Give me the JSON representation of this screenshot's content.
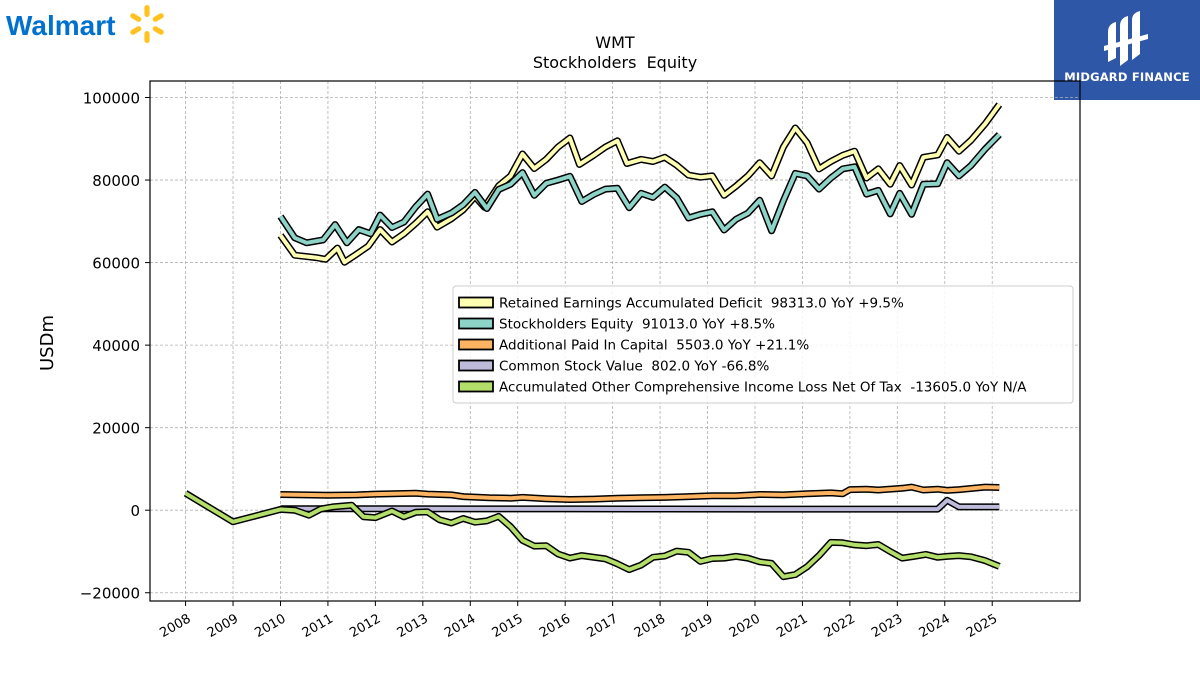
{
  "brand": {
    "left_logo_text": "Walmart",
    "left_logo_icon": "walmart-spark-icon",
    "left_logo_color": "#0071ce",
    "spark_color": "#ffc220",
    "right_logo_text": "MIDGARD FINANCE",
    "right_logo_icon": "midgard-logo-icon",
    "right_logo_bg": "#2f57a8"
  },
  "chart_data": {
    "type": "line",
    "title": "WMT",
    "subtitle": "Stockholders  Equity",
    "ylabel": "USDm",
    "xlabel": "",
    "xlim": [
      2007.25,
      2026.85
    ],
    "ylim": [
      -22000,
      104000
    ],
    "yticks": [
      -20000,
      0,
      20000,
      40000,
      60000,
      80000,
      100000
    ],
    "ytick_labels": [
      "−20000",
      "0",
      "20000",
      "40000",
      "60000",
      "80000",
      "100000"
    ],
    "xticks": [
      2008,
      2009,
      2010,
      2011,
      2012,
      2013,
      2014,
      2015,
      2016,
      2017,
      2018,
      2019,
      2020,
      2021,
      2022,
      2023,
      2024,
      2025
    ],
    "grid": true,
    "legend_position": "center-right",
    "series": [
      {
        "name": "Retained Earnings Accumulated Deficit",
        "legend": "Retained Earnings Accumulated Deficit  98313.0 YoY +9.5%",
        "color": "#ffffb3",
        "points": [
          [
            2010.0,
            66600
          ],
          [
            2010.3,
            61800
          ],
          [
            2010.75,
            61200
          ],
          [
            2010.95,
            60800
          ],
          [
            2011.2,
            63500
          ],
          [
            2011.35,
            60100
          ],
          [
            2011.6,
            62000
          ],
          [
            2011.85,
            64000
          ],
          [
            2012.1,
            68000
          ],
          [
            2012.35,
            65000
          ],
          [
            2012.6,
            67000
          ],
          [
            2012.85,
            69500
          ],
          [
            2013.1,
            72300
          ],
          [
            2013.3,
            68600
          ],
          [
            2013.6,
            70600
          ],
          [
            2013.85,
            72800
          ],
          [
            2014.1,
            76000
          ],
          [
            2014.3,
            73400
          ],
          [
            2014.6,
            78600
          ],
          [
            2014.85,
            81000
          ],
          [
            2015.1,
            86300
          ],
          [
            2015.35,
            82800
          ],
          [
            2015.6,
            85000
          ],
          [
            2015.85,
            88000
          ],
          [
            2016.1,
            90200
          ],
          [
            2016.3,
            83800
          ],
          [
            2016.6,
            86000
          ],
          [
            2016.85,
            88000
          ],
          [
            2017.1,
            89500
          ],
          [
            2017.3,
            84000
          ],
          [
            2017.6,
            85000
          ],
          [
            2017.85,
            84500
          ],
          [
            2018.1,
            85500
          ],
          [
            2018.35,
            83600
          ],
          [
            2018.6,
            81200
          ],
          [
            2018.85,
            80700
          ],
          [
            2019.1,
            81000
          ],
          [
            2019.35,
            76300
          ],
          [
            2019.6,
            78500
          ],
          [
            2019.85,
            81000
          ],
          [
            2020.1,
            84200
          ],
          [
            2020.35,
            81000
          ],
          [
            2020.6,
            88000
          ],
          [
            2020.85,
            92600
          ],
          [
            2021.1,
            89000
          ],
          [
            2021.35,
            82700
          ],
          [
            2021.6,
            84500
          ],
          [
            2021.85,
            86000
          ],
          [
            2022.1,
            87000
          ],
          [
            2022.35,
            80500
          ],
          [
            2022.6,
            82700
          ],
          [
            2022.85,
            79000
          ],
          [
            2023.05,
            83500
          ],
          [
            2023.3,
            78800
          ],
          [
            2023.55,
            85500
          ],
          [
            2023.85,
            86100
          ],
          [
            2024.05,
            90300
          ],
          [
            2024.3,
            87000
          ],
          [
            2024.55,
            89600
          ],
          [
            2024.85,
            93600
          ],
          [
            2025.15,
            98313
          ]
        ]
      },
      {
        "name": "Stockholders Equity",
        "legend": "Stockholders Equity  91013.0 YoY +8.5%",
        "color": "#8dd3c7",
        "points": [
          [
            2010.0,
            71200
          ],
          [
            2010.3,
            66000
          ],
          [
            2010.55,
            64800
          ],
          [
            2010.9,
            65500
          ],
          [
            2011.15,
            69200
          ],
          [
            2011.4,
            64800
          ],
          [
            2011.65,
            68000
          ],
          [
            2011.9,
            67000
          ],
          [
            2012.1,
            71500
          ],
          [
            2012.35,
            68500
          ],
          [
            2012.6,
            69800
          ],
          [
            2012.85,
            73500
          ],
          [
            2013.1,
            76600
          ],
          [
            2013.3,
            70500
          ],
          [
            2013.6,
            72000
          ],
          [
            2013.85,
            74000
          ],
          [
            2014.1,
            77000
          ],
          [
            2014.35,
            73100
          ],
          [
            2014.6,
            77700
          ],
          [
            2014.85,
            79000
          ],
          [
            2015.1,
            81800
          ],
          [
            2015.35,
            76300
          ],
          [
            2015.6,
            79200
          ],
          [
            2015.85,
            80000
          ],
          [
            2016.1,
            80900
          ],
          [
            2016.35,
            74800
          ],
          [
            2016.6,
            76500
          ],
          [
            2016.85,
            77800
          ],
          [
            2017.1,
            78000
          ],
          [
            2017.35,
            73300
          ],
          [
            2017.6,
            76800
          ],
          [
            2017.85,
            75800
          ],
          [
            2018.1,
            78300
          ],
          [
            2018.35,
            75700
          ],
          [
            2018.6,
            70800
          ],
          [
            2018.85,
            71700
          ],
          [
            2019.1,
            72300
          ],
          [
            2019.35,
            67900
          ],
          [
            2019.6,
            70500
          ],
          [
            2019.85,
            72000
          ],
          [
            2020.1,
            75100
          ],
          [
            2020.35,
            67700
          ],
          [
            2020.6,
            75000
          ],
          [
            2020.85,
            81600
          ],
          [
            2021.1,
            81000
          ],
          [
            2021.35,
            77800
          ],
          [
            2021.6,
            80500
          ],
          [
            2021.85,
            82700
          ],
          [
            2022.1,
            83200
          ],
          [
            2022.35,
            76600
          ],
          [
            2022.6,
            77500
          ],
          [
            2022.85,
            71800
          ],
          [
            2023.05,
            76800
          ],
          [
            2023.3,
            71700
          ],
          [
            2023.55,
            79000
          ],
          [
            2023.85,
            79100
          ],
          [
            2024.05,
            84200
          ],
          [
            2024.3,
            81000
          ],
          [
            2024.55,
            83500
          ],
          [
            2024.85,
            87500
          ],
          [
            2025.15,
            91013
          ]
        ]
      },
      {
        "name": "Additional Paid In Capital",
        "legend": "Additional Paid In Capital  5503.0 YoY +21.1%",
        "color": "#fdb462",
        "points": [
          [
            2010.0,
            3800
          ],
          [
            2011.0,
            3600
          ],
          [
            2011.6,
            3700
          ],
          [
            2012.0,
            3900
          ],
          [
            2012.85,
            4100
          ],
          [
            2013.1,
            3900
          ],
          [
            2013.6,
            3700
          ],
          [
            2013.85,
            3300
          ],
          [
            2014.4,
            3000
          ],
          [
            2014.85,
            2900
          ],
          [
            2015.1,
            3100
          ],
          [
            2015.6,
            2800
          ],
          [
            2016.1,
            2600
          ],
          [
            2016.6,
            2700
          ],
          [
            2017.1,
            2900
          ],
          [
            2017.6,
            3000
          ],
          [
            2018.1,
            3100
          ],
          [
            2018.6,
            3300
          ],
          [
            2019.1,
            3500
          ],
          [
            2019.6,
            3500
          ],
          [
            2020.1,
            3800
          ],
          [
            2020.6,
            3700
          ],
          [
            2021.1,
            4000
          ],
          [
            2021.6,
            4200
          ],
          [
            2021.85,
            4000
          ],
          [
            2022.0,
            5000
          ],
          [
            2022.35,
            5100
          ],
          [
            2022.6,
            4900
          ],
          [
            2023.1,
            5300
          ],
          [
            2023.3,
            5600
          ],
          [
            2023.55,
            4900
          ],
          [
            2023.85,
            5100
          ],
          [
            2024.05,
            4800
          ],
          [
            2024.3,
            5000
          ],
          [
            2024.85,
            5600
          ],
          [
            2025.15,
            5503
          ]
        ]
      },
      {
        "name": "Common Stock Value",
        "legend": "Common Stock Value  802.0 YoY -66.8%",
        "color": "#bebada",
        "points": [
          [
            2010.0,
            350
          ],
          [
            2011.6,
            350
          ],
          [
            2011.85,
            340
          ],
          [
            2012.35,
            330
          ],
          [
            2014.1,
            325
          ],
          [
            2016.1,
            310
          ],
          [
            2018.1,
            295
          ],
          [
            2020.1,
            280
          ],
          [
            2022.1,
            270
          ],
          [
            2023.85,
            270
          ],
          [
            2024.05,
            2400
          ],
          [
            2024.3,
            800
          ],
          [
            2025.15,
            802
          ]
        ]
      },
      {
        "name": "Accumulated Other Comprehensive Income Loss Net Of Tax",
        "legend": "Accumulated Other Comprehensive Income Loss Net Of Tax  -13605.0 YoY N/A",
        "color": "#b3de69",
        "points": [
          [
            2008.0,
            4100
          ],
          [
            2009.0,
            -2800
          ],
          [
            2009.5,
            -1300
          ],
          [
            2010.0,
            200
          ],
          [
            2010.3,
            0
          ],
          [
            2010.6,
            -1200
          ],
          [
            2010.85,
            300
          ],
          [
            2011.1,
            800
          ],
          [
            2011.5,
            1200
          ],
          [
            2011.75,
            -1600
          ],
          [
            2012.0,
            -1800
          ],
          [
            2012.35,
            -200
          ],
          [
            2012.6,
            -1600
          ],
          [
            2012.85,
            -500
          ],
          [
            2013.1,
            -400
          ],
          [
            2013.35,
            -2300
          ],
          [
            2013.6,
            -3100
          ],
          [
            2013.85,
            -2000
          ],
          [
            2014.1,
            -2900
          ],
          [
            2014.35,
            -2600
          ],
          [
            2014.6,
            -1500
          ],
          [
            2014.85,
            -4000
          ],
          [
            2015.1,
            -7300
          ],
          [
            2015.35,
            -8700
          ],
          [
            2015.6,
            -8600
          ],
          [
            2015.85,
            -10600
          ],
          [
            2016.1,
            -11600
          ],
          [
            2016.35,
            -11000
          ],
          [
            2016.85,
            -11800
          ],
          [
            2017.1,
            -13000
          ],
          [
            2017.35,
            -14400
          ],
          [
            2017.6,
            -13300
          ],
          [
            2017.85,
            -11400
          ],
          [
            2018.1,
            -11100
          ],
          [
            2018.35,
            -9900
          ],
          [
            2018.6,
            -10200
          ],
          [
            2018.85,
            -12400
          ],
          [
            2019.1,
            -11700
          ],
          [
            2019.35,
            -11600
          ],
          [
            2019.6,
            -11200
          ],
          [
            2019.85,
            -11600
          ],
          [
            2020.1,
            -12500
          ],
          [
            2020.35,
            -12900
          ],
          [
            2020.6,
            -16100
          ],
          [
            2020.85,
            -15600
          ],
          [
            2021.1,
            -13700
          ],
          [
            2021.35,
            -11000
          ],
          [
            2021.6,
            -7800
          ],
          [
            2021.85,
            -7900
          ],
          [
            2022.1,
            -8400
          ],
          [
            2022.35,
            -8600
          ],
          [
            2022.6,
            -8300
          ],
          [
            2022.85,
            -10000
          ],
          [
            2023.1,
            -11600
          ],
          [
            2023.35,
            -11200
          ],
          [
            2023.6,
            -10700
          ],
          [
            2023.85,
            -11400
          ],
          [
            2024.05,
            -11200
          ],
          [
            2024.3,
            -11000
          ],
          [
            2024.55,
            -11300
          ],
          [
            2024.85,
            -12200
          ],
          [
            2025.15,
            -13605
          ]
        ]
      }
    ]
  }
}
